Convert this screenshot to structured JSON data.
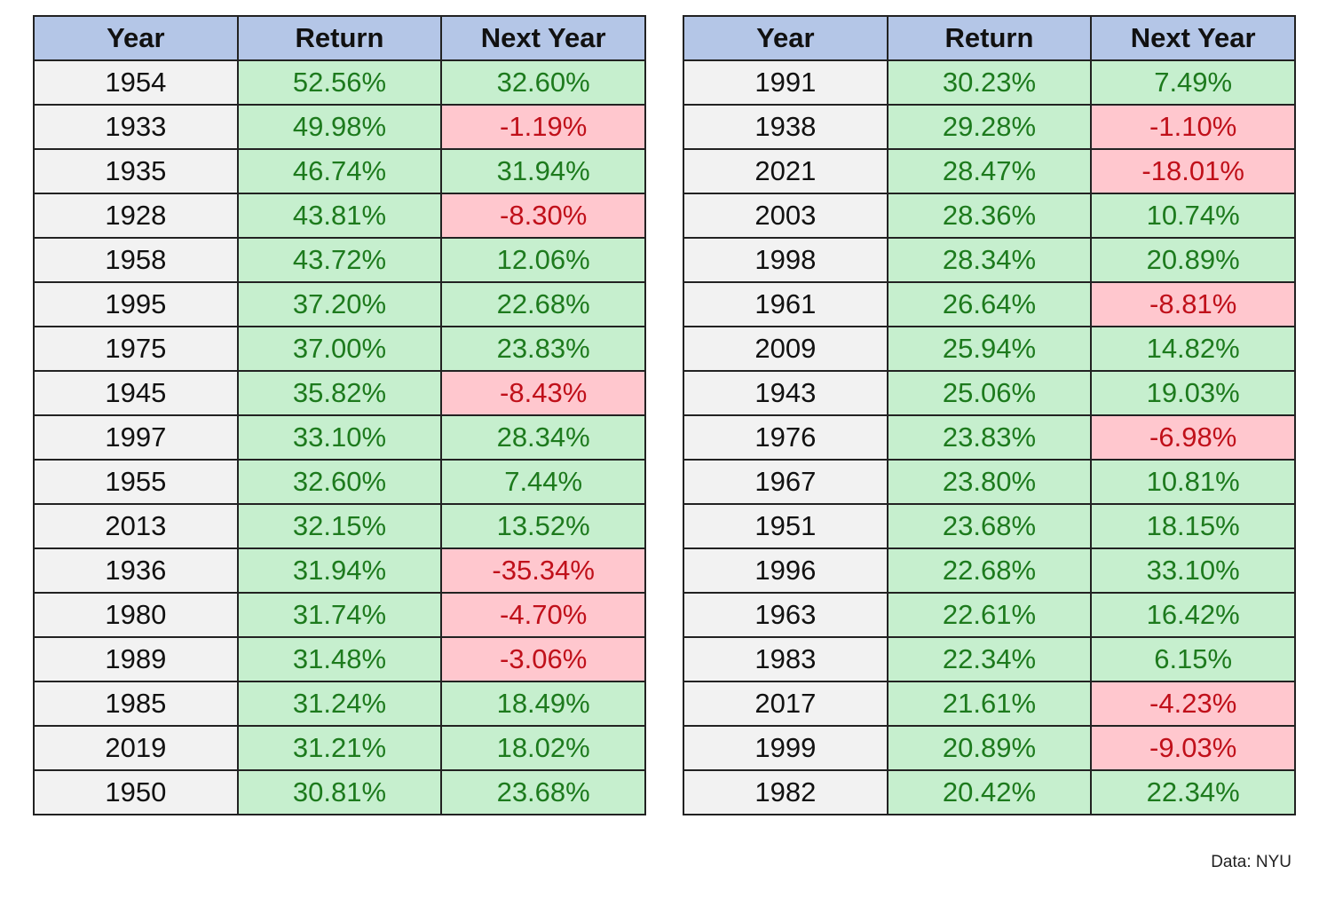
{
  "tables": [
    {
      "header": [
        "Year",
        "Return",
        "Next Year"
      ],
      "rows": [
        [
          "1954",
          "52.56%",
          "32.60%"
        ],
        [
          "1933",
          "49.98%",
          "-1.19%"
        ],
        [
          "1935",
          "46.74%",
          "31.94%"
        ],
        [
          "1928",
          "43.81%",
          "-8.30%"
        ],
        [
          "1958",
          "43.72%",
          "12.06%"
        ],
        [
          "1995",
          "37.20%",
          "22.68%"
        ],
        [
          "1975",
          "37.00%",
          "23.83%"
        ],
        [
          "1945",
          "35.82%",
          "-8.43%"
        ],
        [
          "1997",
          "33.10%",
          "28.34%"
        ],
        [
          "1955",
          "32.60%",
          "7.44%"
        ],
        [
          "2013",
          "32.15%",
          "13.52%"
        ],
        [
          "1936",
          "31.94%",
          "-35.34%"
        ],
        [
          "1980",
          "31.74%",
          "-4.70%"
        ],
        [
          "1989",
          "31.48%",
          "-3.06%"
        ],
        [
          "1985",
          "31.24%",
          "18.49%"
        ],
        [
          "2019",
          "31.21%",
          "18.02%"
        ],
        [
          "1950",
          "30.81%",
          "23.68%"
        ]
      ]
    },
    {
      "header": [
        "Year",
        "Return",
        "Next Year"
      ],
      "rows": [
        [
          "1991",
          "30.23%",
          "7.49%"
        ],
        [
          "1938",
          "29.28%",
          "-1.10%"
        ],
        [
          "2021",
          "28.47%",
          "-18.01%"
        ],
        [
          "2003",
          "28.36%",
          "10.74%"
        ],
        [
          "1998",
          "28.34%",
          "20.89%"
        ],
        [
          "1961",
          "26.64%",
          "-8.81%"
        ],
        [
          "2009",
          "25.94%",
          "14.82%"
        ],
        [
          "1943",
          "25.06%",
          "19.03%"
        ],
        [
          "1976",
          "23.83%",
          "-6.98%"
        ],
        [
          "1967",
          "23.80%",
          "10.81%"
        ],
        [
          "1951",
          "23.68%",
          "18.15%"
        ],
        [
          "1996",
          "22.68%",
          "33.10%"
        ],
        [
          "1963",
          "22.61%",
          "16.42%"
        ],
        [
          "1983",
          "22.34%",
          "6.15%"
        ],
        [
          "2017",
          "21.61%",
          "-4.23%"
        ],
        [
          "1999",
          "20.89%",
          "-9.03%"
        ],
        [
          "1982",
          "20.42%",
          "22.34%"
        ]
      ]
    }
  ],
  "source": "Data: NYU"
}
